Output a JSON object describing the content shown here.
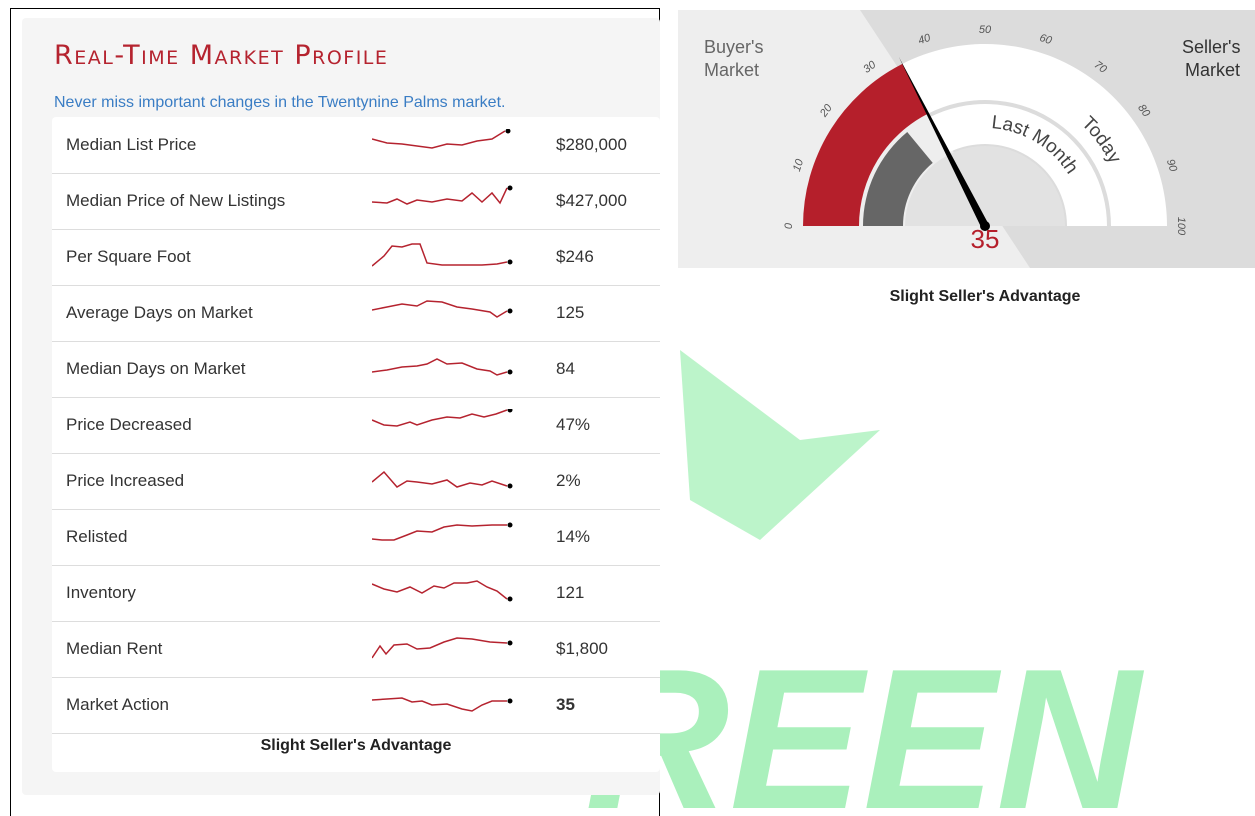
{
  "header": {
    "title": "Real-Time Market Profile",
    "subtitle": "Never miss important changes in the Twentynine Palms market."
  },
  "table": {
    "rows": [
      [
        "Median List Price",
        "$280,000"
      ],
      [
        "Median Price of New Listings",
        "$427,000"
      ],
      [
        "Per Square Foot",
        "$246"
      ],
      [
        "Average Days on Market",
        "125"
      ],
      [
        "Median Days on Market",
        "84"
      ],
      [
        "Price Decreased",
        "47%"
      ],
      [
        "Price Increased",
        "2%"
      ],
      [
        "Relisted",
        "14%"
      ],
      [
        "Inventory",
        "121"
      ],
      [
        "Median Rent",
        "$1,800"
      ],
      [
        "Market Action",
        "35"
      ]
    ],
    "footer": "Slight Seller's Advantage"
  },
  "gauge": {
    "value": 35,
    "lim": [
      0,
      100
    ],
    "ticks": [
      0,
      10,
      20,
      30,
      40,
      50,
      60,
      70,
      80,
      90,
      100
    ],
    "left_label": [
      "Buyer's",
      "Market"
    ],
    "right_label": [
      "Seller's",
      "Market"
    ],
    "inner_band": "Last Month",
    "outer_band": "Today",
    "caption": "Slight Seller's Advantage"
  },
  "watermark": "REEN"
}
